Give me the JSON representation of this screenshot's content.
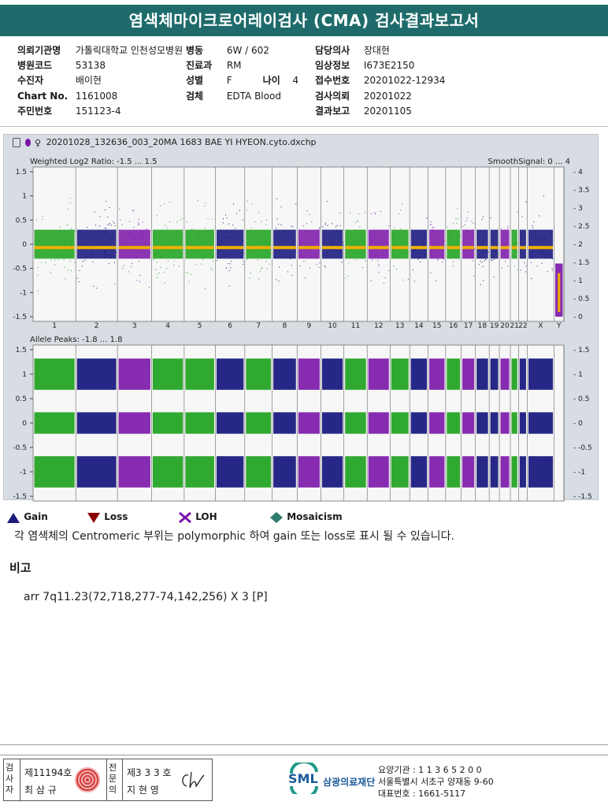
{
  "title": "염색체마이크로어레이검사 (CMA) 검사결과보고서",
  "info": {
    "left": [
      {
        "label": "의뢰기관명",
        "value": "가톨릭대학교 인천성모병원"
      },
      {
        "label": "병원코드",
        "value": "53138"
      },
      {
        "label": "수진자",
        "value": "배이현"
      },
      {
        "label": "Chart No.",
        "value": "1161008"
      },
      {
        "label": "주민번호",
        "value": "151123-4"
      }
    ],
    "mid": [
      {
        "label": "병동",
        "value": "6W / 602"
      },
      {
        "label": "진료과",
        "value": "RM"
      },
      {
        "label": "성별",
        "value": "F"
      },
      {
        "label": "검체",
        "value": "EDTA Blood"
      }
    ],
    "age": {
      "label": "나이",
      "value": "4"
    },
    "right": [
      {
        "label": "담당의사",
        "value": "장대현"
      },
      {
        "label": "임상정보",
        "value": "I673E2150"
      },
      {
        "label": "접수번호",
        "value": "20201022-12934"
      },
      {
        "label": "검사의뢰",
        "value": "20201022"
      },
      {
        "label": "결과보고",
        "value": "20201105"
      }
    ]
  },
  "plot": {
    "filename": "20201028_132636_003_20MA 1683 BAE YI HYEON.cyto.dxchp",
    "top_title": "Weighted Log2 Ratio: -1.5 ... 1.5",
    "top_right_title": "SmoothSignal: 0 ... 4",
    "bottom_title": "Allele Peaks: -1.8 ... 1.8",
    "top_left_ticks": [
      "1.5",
      "1",
      "0.5",
      "0",
      "-0.5",
      "-1",
      "-1.5"
    ],
    "top_right_ticks": [
      "4",
      "3.5",
      "3",
      "2.5",
      "2",
      "1.5",
      "1",
      "0.5",
      "0"
    ],
    "bottom_left_ticks": [
      "1.5",
      "1",
      "0.5",
      "0",
      "-0.5",
      "-1",
      "-1.5"
    ],
    "bottom_right_ticks": [
      "1.5",
      "1",
      "0.5",
      "0",
      "-0.5",
      "-1",
      "-1.5"
    ],
    "chromosomes": [
      "1",
      "2",
      "3",
      "4",
      "5",
      "6",
      "7",
      "8",
      "9",
      "10",
      "11",
      "12",
      "13",
      "14",
      "15",
      "16",
      "17",
      "18",
      "19",
      "20",
      "21",
      "22",
      "X",
      "Y"
    ],
    "chrom_colors": [
      "green",
      "navy",
      "purple",
      "green",
      "green",
      "navy",
      "green",
      "navy",
      "purple",
      "navy",
      "green",
      "purple",
      "green",
      "navy",
      "purple",
      "green",
      "purple",
      "navy",
      "navy",
      "purple",
      "green",
      "navy",
      "navy",
      "purple"
    ],
    "colors": {
      "green": "#1aa01a",
      "navy": "#10107a",
      "purple": "#7a14a8",
      "smooth": "#f0b000"
    }
  },
  "legend": [
    {
      "name": "gain",
      "label": "Gain",
      "color": "#1a1a7a"
    },
    {
      "name": "loss",
      "label": "Loss",
      "color": "#8b0000"
    },
    {
      "name": "loh",
      "label": "LOH",
      "color": "#7a14a8"
    },
    {
      "name": "mosaicism",
      "label": "Mosaicism",
      "color": "#2e7d6f"
    }
  ],
  "note": "각 염색체의 Centromeric 부위는 polymorphic 하여 gain 또는 loss로 표시 될 수 있습니다.",
  "remark_title": "비고",
  "remark_text": "arr 7q11.23(72,718,277-74,142,256) X 3 [P]",
  "footer": {
    "left_role": "검사자",
    "left_license": "제11194호",
    "left_name": "최 삼 규",
    "right_role": "전문의",
    "right_license": "제3 3 3 호",
    "right_name": "지 현 영",
    "logo_text": "SML",
    "foundation": "삼광의료재단",
    "institution_code": "요양기관 : 1 1 3 6 5 2 0 0",
    "address": "서울특별시 서초구 양재동 9-60",
    "phone": "대표번호 : 1661-5117"
  }
}
